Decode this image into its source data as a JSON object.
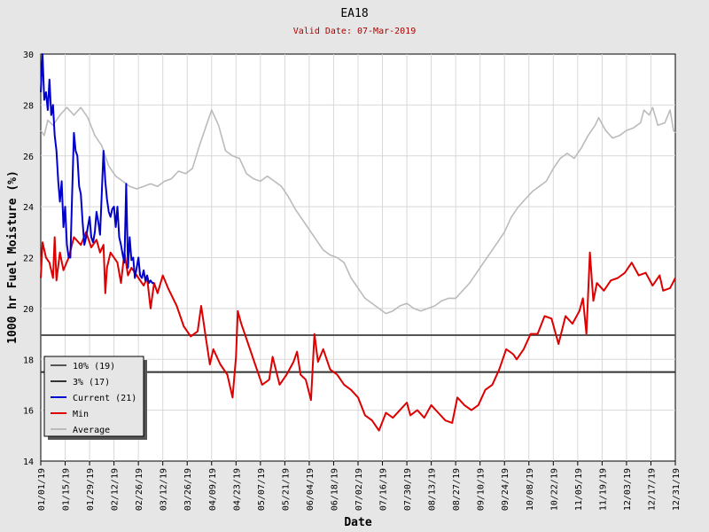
{
  "chart_data": {
    "type": "line",
    "title": "EA18",
    "subtitle": "Valid Date: 07-Mar-2019",
    "xlabel": "Date",
    "ylabel": "1000 hr Fuel Moisture (%)",
    "ylim": [
      14,
      30
    ],
    "yticks": [
      "14",
      "16",
      "18",
      "20",
      "22",
      "24",
      "26",
      "28",
      "30"
    ],
    "xlim": [
      "01/01/19",
      "12/31/19"
    ],
    "xticks": [
      "01/01/19",
      "01/15/19",
      "01/29/19",
      "02/12/19",
      "02/26/19",
      "03/12/19",
      "03/26/19",
      "04/09/19",
      "04/23/19",
      "05/07/19",
      "05/21/19",
      "06/04/19",
      "06/18/19",
      "07/02/19",
      "07/16/19",
      "07/30/19",
      "08/13/19",
      "08/27/19",
      "09/10/19",
      "09/24/19",
      "10/08/19",
      "10/22/19",
      "11/05/19",
      "11/19/19",
      "12/03/19",
      "12/17/19",
      "12/31/19"
    ],
    "grid": true,
    "legend_position": "bottom-left",
    "reference_lines": [
      {
        "name": "10% (19)",
        "value": 18.95,
        "color": "#555555"
      },
      {
        "name": "3% (17)",
        "value": 17.5,
        "color": "#333333"
      }
    ],
    "series": [
      {
        "name": "Current (21)",
        "color": "#0000cc",
        "points": [
          [
            "01/01/19",
            28.5
          ],
          [
            "01/02/19",
            30.0
          ],
          [
            "01/03/19",
            28.2
          ],
          [
            "01/04/19",
            28.5
          ],
          [
            "01/05/19",
            27.8
          ],
          [
            "01/06/19",
            29.0
          ],
          [
            "01/07/19",
            27.6
          ],
          [
            "01/08/19",
            28.0
          ],
          [
            "01/09/19",
            26.8
          ],
          [
            "01/10/19",
            26.2
          ],
          [
            "01/11/19",
            25.0
          ],
          [
            "01/12/19",
            24.2
          ],
          [
            "01/13/19",
            25.0
          ],
          [
            "01/14/19",
            23.2
          ],
          [
            "01/15/19",
            24.0
          ],
          [
            "01/16/19",
            22.5
          ],
          [
            "01/17/19",
            22.0
          ],
          [
            "01/18/19",
            22.0
          ],
          [
            "01/19/19",
            24.5
          ],
          [
            "01/20/19",
            26.9
          ],
          [
            "01/21/19",
            26.2
          ],
          [
            "01/22/19",
            26.0
          ],
          [
            "01/23/19",
            24.8
          ],
          [
            "01/24/19",
            24.5
          ],
          [
            "01/25/19",
            23.4
          ],
          [
            "01/26/19",
            22.5
          ],
          [
            "01/27/19",
            22.8
          ],
          [
            "01/28/19",
            23.2
          ],
          [
            "01/29/19",
            23.6
          ],
          [
            "01/30/19",
            22.8
          ],
          [
            "01/31/19",
            22.6
          ],
          [
            "02/01/19",
            23.0
          ],
          [
            "02/02/19",
            23.8
          ],
          [
            "02/03/19",
            23.4
          ],
          [
            "02/04/19",
            22.9
          ],
          [
            "02/05/19",
            24.5
          ],
          [
            "02/06/19",
            26.2
          ],
          [
            "02/07/19",
            25.0
          ],
          [
            "02/08/19",
            24.3
          ],
          [
            "02/09/19",
            23.8
          ],
          [
            "02/10/19",
            23.6
          ],
          [
            "02/11/19",
            23.9
          ],
          [
            "02/12/19",
            24.0
          ],
          [
            "02/13/19",
            23.2
          ],
          [
            "02/14/19",
            24.0
          ],
          [
            "02/15/19",
            22.8
          ],
          [
            "02/16/19",
            22.5
          ],
          [
            "02/17/19",
            22.1
          ],
          [
            "02/18/19",
            21.8
          ],
          [
            "02/19/19",
            24.9
          ],
          [
            "02/20/19",
            21.6
          ],
          [
            "02/21/19",
            22.8
          ],
          [
            "02/22/19",
            21.9
          ],
          [
            "02/23/19",
            22.0
          ],
          [
            "02/24/19",
            21.2
          ],
          [
            "02/25/19",
            21.6
          ],
          [
            "02/26/19",
            22.0
          ],
          [
            "02/27/19",
            21.3
          ],
          [
            "02/28/19",
            21.2
          ],
          [
            "03/01/19",
            21.5
          ],
          [
            "03/02/19",
            21.1
          ],
          [
            "03/03/19",
            21.3
          ],
          [
            "03/04/19",
            21.0
          ],
          [
            "03/05/19",
            21.1
          ],
          [
            "03/06/19",
            21.0
          ],
          [
            "03/07/19",
            21.0
          ]
        ]
      },
      {
        "name": "Min",
        "color": "#dd0000",
        "points": [
          [
            "01/01/19",
            21.2
          ],
          [
            "01/02/19",
            22.6
          ],
          [
            "01/04/19",
            22.0
          ],
          [
            "01/06/19",
            21.8
          ],
          [
            "01/08/19",
            21.2
          ],
          [
            "01/09/19",
            22.8
          ],
          [
            "01/10/19",
            21.1
          ],
          [
            "01/12/19",
            22.2
          ],
          [
            "01/14/19",
            21.5
          ],
          [
            "01/17/19",
            22.0
          ],
          [
            "01/20/19",
            22.8
          ],
          [
            "01/24/19",
            22.5
          ],
          [
            "01/27/19",
            23.0
          ],
          [
            "01/30/19",
            22.4
          ],
          [
            "02/02/19",
            22.7
          ],
          [
            "02/04/19",
            22.2
          ],
          [
            "02/06/19",
            22.5
          ],
          [
            "02/07/19",
            20.6
          ],
          [
            "02/08/19",
            21.6
          ],
          [
            "02/10/19",
            22.2
          ],
          [
            "02/14/19",
            21.8
          ],
          [
            "02/16/19",
            21.0
          ],
          [
            "02/18/19",
            22.2
          ],
          [
            "02/20/19",
            21.3
          ],
          [
            "02/22/19",
            21.6
          ],
          [
            "02/26/19",
            21.2
          ],
          [
            "03/01/19",
            20.9
          ],
          [
            "03/03/19",
            21.2
          ],
          [
            "03/05/19",
            20.0
          ],
          [
            "03/07/19",
            21.0
          ],
          [
            "03/09/19",
            20.6
          ],
          [
            "03/12/19",
            21.3
          ],
          [
            "03/15/19",
            20.8
          ],
          [
            "03/20/19",
            20.1
          ],
          [
            "03/24/19",
            19.3
          ],
          [
            "03/28/19",
            18.9
          ],
          [
            "04/01/19",
            19.1
          ],
          [
            "04/03/19",
            20.1
          ],
          [
            "04/06/19",
            18.7
          ],
          [
            "04/08/19",
            17.8
          ],
          [
            "04/10/19",
            18.4
          ],
          [
            "04/14/19",
            17.8
          ],
          [
            "04/18/19",
            17.4
          ],
          [
            "04/21/19",
            16.5
          ],
          [
            "04/23/19",
            18.1
          ],
          [
            "04/24/19",
            19.9
          ],
          [
            "04/26/19",
            19.4
          ],
          [
            "04/30/19",
            18.6
          ],
          [
            "05/04/19",
            17.8
          ],
          [
            "05/08/19",
            17.0
          ],
          [
            "05/12/19",
            17.2
          ],
          [
            "05/14/19",
            18.1
          ],
          [
            "05/18/19",
            17.0
          ],
          [
            "05/22/19",
            17.4
          ],
          [
            "05/26/19",
            17.9
          ],
          [
            "05/28/19",
            18.3
          ],
          [
            "05/30/19",
            17.4
          ],
          [
            "06/02/19",
            17.2
          ],
          [
            "06/05/19",
            16.4
          ],
          [
            "06/07/19",
            19.0
          ],
          [
            "06/09/19",
            17.9
          ],
          [
            "06/12/19",
            18.4
          ],
          [
            "06/16/19",
            17.6
          ],
          [
            "06/20/19",
            17.4
          ],
          [
            "06/24/19",
            17.0
          ],
          [
            "06/28/19",
            16.8
          ],
          [
            "07/02/19",
            16.5
          ],
          [
            "07/06/19",
            15.8
          ],
          [
            "07/10/19",
            15.6
          ],
          [
            "07/14/19",
            15.2
          ],
          [
            "07/18/19",
            15.9
          ],
          [
            "07/22/19",
            15.7
          ],
          [
            "07/26/19",
            16.0
          ],
          [
            "07/30/19",
            16.3
          ],
          [
            "08/01/19",
            15.8
          ],
          [
            "08/05/19",
            16.0
          ],
          [
            "08/09/19",
            15.7
          ],
          [
            "08/13/19",
            16.2
          ],
          [
            "08/17/19",
            15.9
          ],
          [
            "08/21/19",
            15.6
          ],
          [
            "08/25/19",
            15.5
          ],
          [
            "08/28/19",
            16.5
          ],
          [
            "09/01/19",
            16.2
          ],
          [
            "09/05/19",
            16.0
          ],
          [
            "09/09/19",
            16.2
          ],
          [
            "09/13/19",
            16.8
          ],
          [
            "09/17/19",
            17.0
          ],
          [
            "09/21/19",
            17.6
          ],
          [
            "09/25/19",
            18.4
          ],
          [
            "09/29/19",
            18.2
          ],
          [
            "10/01/19",
            18.0
          ],
          [
            "10/05/19",
            18.4
          ],
          [
            "10/09/19",
            19.0
          ],
          [
            "10/13/19",
            19.0
          ],
          [
            "10/17/19",
            19.7
          ],
          [
            "10/21/19",
            19.6
          ],
          [
            "10/25/19",
            18.6
          ],
          [
            "10/29/19",
            19.7
          ],
          [
            "11/02/19",
            19.4
          ],
          [
            "11/06/19",
            19.9
          ],
          [
            "11/08/19",
            20.4
          ],
          [
            "11/10/19",
            19.0
          ],
          [
            "11/12/19",
            22.2
          ],
          [
            "11/14/19",
            20.3
          ],
          [
            "11/16/19",
            21.0
          ],
          [
            "11/20/19",
            20.7
          ],
          [
            "11/24/19",
            21.1
          ],
          [
            "11/28/19",
            21.2
          ],
          [
            "12/02/19",
            21.4
          ],
          [
            "12/06/19",
            21.8
          ],
          [
            "12/10/19",
            21.3
          ],
          [
            "12/14/19",
            21.4
          ],
          [
            "12/18/19",
            20.9
          ],
          [
            "12/22/19",
            21.3
          ],
          [
            "12/24/19",
            20.7
          ],
          [
            "12/28/19",
            20.8
          ],
          [
            "12/31/19",
            21.2
          ]
        ]
      },
      {
        "name": "Average",
        "color": "#bbbbbb",
        "points": [
          [
            "01/01/19",
            27.0
          ],
          [
            "01/03/19",
            26.8
          ],
          [
            "01/05/19",
            27.4
          ],
          [
            "01/08/19",
            27.2
          ],
          [
            "01/12/19",
            27.6
          ],
          [
            "01/16/19",
            27.9
          ],
          [
            "01/20/19",
            27.6
          ],
          [
            "01/24/19",
            27.9
          ],
          [
            "01/28/19",
            27.5
          ],
          [
            "02/01/19",
            26.8
          ],
          [
            "02/05/19",
            26.4
          ],
          [
            "02/09/19",
            25.6
          ],
          [
            "02/13/19",
            25.2
          ],
          [
            "02/17/19",
            25.0
          ],
          [
            "02/21/19",
            24.8
          ],
          [
            "02/25/19",
            24.7
          ],
          [
            "03/01/19",
            24.8
          ],
          [
            "03/05/19",
            24.9
          ],
          [
            "03/09/19",
            24.8
          ],
          [
            "03/13/19",
            25.0
          ],
          [
            "03/17/19",
            25.1
          ],
          [
            "03/21/19",
            25.4
          ],
          [
            "03/25/19",
            25.3
          ],
          [
            "03/29/19",
            25.5
          ],
          [
            "04/02/19",
            26.4
          ],
          [
            "04/06/19",
            27.2
          ],
          [
            "04/09/19",
            27.8
          ],
          [
            "04/13/19",
            27.2
          ],
          [
            "04/17/19",
            26.2
          ],
          [
            "04/21/19",
            26.0
          ],
          [
            "04/25/19",
            25.9
          ],
          [
            "04/29/19",
            25.3
          ],
          [
            "05/03/19",
            25.1
          ],
          [
            "05/07/19",
            25.0
          ],
          [
            "05/11/19",
            25.2
          ],
          [
            "05/15/19",
            25.0
          ],
          [
            "05/19/19",
            24.8
          ],
          [
            "05/23/19",
            24.4
          ],
          [
            "05/27/19",
            23.9
          ],
          [
            "05/31/19",
            23.5
          ],
          [
            "06/04/19",
            23.1
          ],
          [
            "06/08/19",
            22.7
          ],
          [
            "06/12/19",
            22.3
          ],
          [
            "06/16/19",
            22.1
          ],
          [
            "06/20/19",
            22.0
          ],
          [
            "06/24/19",
            21.8
          ],
          [
            "06/28/19",
            21.2
          ],
          [
            "07/02/19",
            20.8
          ],
          [
            "07/06/19",
            20.4
          ],
          [
            "07/10/19",
            20.2
          ],
          [
            "07/14/19",
            20.0
          ],
          [
            "07/18/19",
            19.8
          ],
          [
            "07/22/19",
            19.9
          ],
          [
            "07/26/19",
            20.1
          ],
          [
            "07/30/19",
            20.2
          ],
          [
            "08/03/19",
            20.0
          ],
          [
            "08/07/19",
            19.9
          ],
          [
            "08/11/19",
            20.0
          ],
          [
            "08/15/19",
            20.1
          ],
          [
            "08/19/19",
            20.3
          ],
          [
            "08/23/19",
            20.4
          ],
          [
            "08/27/19",
            20.4
          ],
          [
            "08/31/19",
            20.7
          ],
          [
            "09/04/19",
            21.0
          ],
          [
            "09/08/19",
            21.4
          ],
          [
            "09/12/19",
            21.8
          ],
          [
            "09/16/19",
            22.2
          ],
          [
            "09/20/19",
            22.6
          ],
          [
            "09/24/19",
            23.0
          ],
          [
            "09/28/19",
            23.6
          ],
          [
            "10/02/19",
            24.0
          ],
          [
            "10/06/19",
            24.3
          ],
          [
            "10/10/19",
            24.6
          ],
          [
            "10/14/19",
            24.8
          ],
          [
            "10/18/19",
            25.0
          ],
          [
            "10/22/19",
            25.5
          ],
          [
            "10/26/19",
            25.9
          ],
          [
            "10/30/19",
            26.1
          ],
          [
            "11/03/19",
            25.9
          ],
          [
            "11/07/19",
            26.3
          ],
          [
            "11/11/19",
            26.8
          ],
          [
            "11/15/19",
            27.2
          ],
          [
            "11/17/19",
            27.5
          ],
          [
            "11/21/19",
            27.0
          ],
          [
            "11/25/19",
            26.7
          ],
          [
            "11/29/19",
            26.8
          ],
          [
            "12/03/19",
            27.0
          ],
          [
            "12/07/19",
            27.1
          ],
          [
            "12/11/19",
            27.3
          ],
          [
            "12/13/19",
            27.8
          ],
          [
            "12/16/19",
            27.6
          ],
          [
            "12/18/19",
            27.9
          ],
          [
            "12/21/19",
            27.2
          ],
          [
            "12/25/19",
            27.3
          ],
          [
            "12/28/19",
            27.8
          ],
          [
            "12/30/19",
            27.0
          ],
          [
            "12/31/19",
            26.9
          ]
        ]
      }
    ]
  }
}
